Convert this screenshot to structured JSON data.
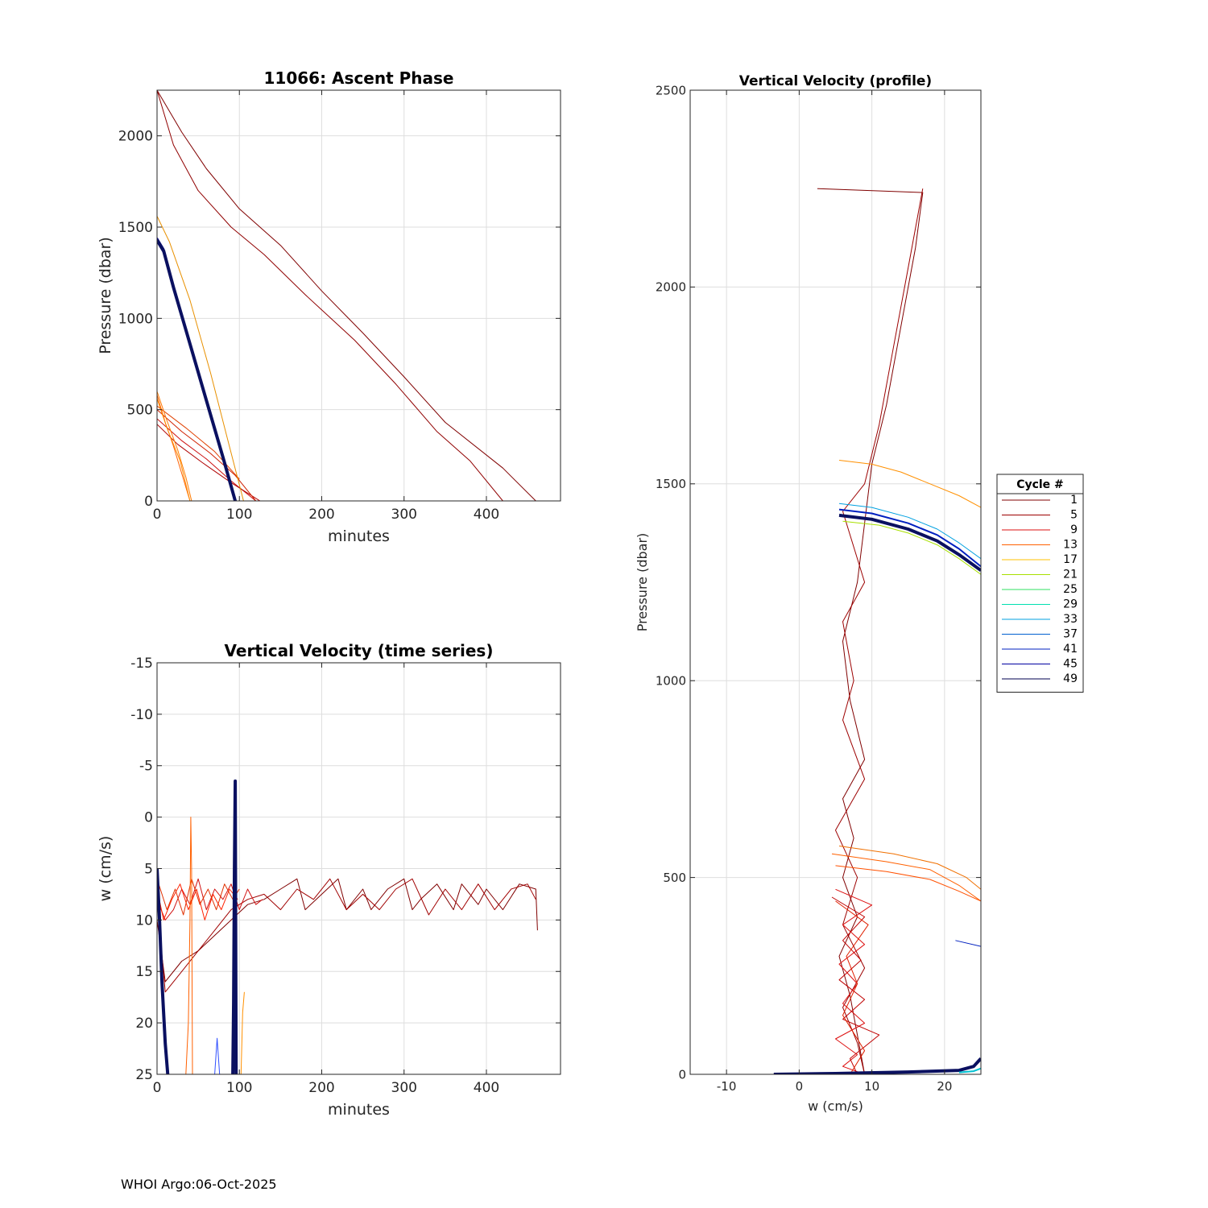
{
  "footer": "WHOI Argo:06-Oct-2025",
  "chart_data": [
    {
      "id": "ascent",
      "type": "line",
      "title": "11066: Ascent Phase",
      "xlabel": "minutes",
      "ylabel": "Pressure (dbar)",
      "xlim": [
        0,
        490
      ],
      "ylim": [
        2250,
        0
      ],
      "y_reversed": true,
      "xticks": [
        0,
        100,
        200,
        300,
        400
      ],
      "yticks": [
        0,
        500,
        1000,
        1500,
        2000
      ],
      "grid": true,
      "series": [
        {
          "color": "#800000",
          "width": 1,
          "x": [
            0,
            30,
            60,
            100,
            150,
            200,
            250,
            300,
            350,
            420,
            460
          ],
          "y": [
            2250,
            2020,
            1820,
            1600,
            1400,
            1150,
            920,
            680,
            430,
            180,
            0
          ]
        },
        {
          "color": "#900000",
          "width": 1,
          "x": [
            0,
            20,
            50,
            90,
            130,
            180,
            240,
            290,
            340,
            380,
            420
          ],
          "y": [
            2250,
            1950,
            1700,
            1500,
            1350,
            1130,
            880,
            640,
            380,
            220,
            0
          ]
        },
        {
          "color": "#cc1010",
          "width": 1,
          "x": [
            0,
            30,
            60,
            90,
            120
          ],
          "y": [
            450,
            330,
            230,
            110,
            0
          ]
        },
        {
          "color": "#b00000",
          "width": 1,
          "x": [
            0,
            25,
            55,
            90,
            125
          ],
          "y": [
            420,
            310,
            210,
            100,
            0
          ]
        },
        {
          "color": "#d02000",
          "width": 1,
          "x": [
            0,
            30,
            65,
            95,
            120
          ],
          "y": [
            500,
            380,
            260,
            140,
            0
          ]
        },
        {
          "color": "#e04000",
          "width": 1,
          "x": [
            0,
            35,
            70,
            100
          ],
          "y": [
            520,
            400,
            270,
            120
          ]
        },
        {
          "color": "#ff6000",
          "width": 1,
          "x": [
            0,
            10,
            20,
            30,
            40
          ],
          "y": [
            580,
            430,
            300,
            150,
            0
          ]
        },
        {
          "color": "#ff7a00",
          "width": 1,
          "x": [
            0,
            12,
            25,
            35,
            42
          ],
          "y": [
            600,
            440,
            280,
            130,
            0
          ]
        },
        {
          "color": "#ff8c00",
          "width": 1,
          "x": [
            0,
            12,
            28,
            40
          ],
          "y": [
            560,
            400,
            220,
            0
          ]
        },
        {
          "color": "#e89000",
          "width": 1,
          "x": [
            0,
            15,
            40,
            65,
            85,
            105
          ],
          "y": [
            1560,
            1420,
            1100,
            700,
            350,
            0
          ]
        },
        {
          "color": "#0000a0",
          "width": 2,
          "x": [
            0,
            8,
            20,
            40,
            60,
            80,
            95
          ],
          "y": [
            1440,
            1380,
            1180,
            870,
            560,
            250,
            0
          ]
        },
        {
          "color": "#00006a",
          "width": 2,
          "x": [
            0,
            8,
            20,
            40,
            60,
            80,
            95
          ],
          "y": [
            1420,
            1360,
            1160,
            850,
            540,
            230,
            0
          ]
        },
        {
          "color": "#0a1060",
          "width": 4,
          "x": [
            0,
            8,
            20,
            40,
            60,
            80,
            95
          ],
          "y": [
            1430,
            1370,
            1170,
            860,
            550,
            240,
            0
          ]
        }
      ]
    },
    {
      "id": "timeseries",
      "type": "line",
      "title": "Vertical Velocity (time series)",
      "xlabel": "minutes",
      "ylabel": "w (cm/s)",
      "xlim": [
        0,
        490
      ],
      "ylim": [
        -15,
        25
      ],
      "xticks": [
        0,
        100,
        200,
        300,
        400
      ],
      "yticks": [
        -15,
        -10,
        -5,
        0,
        5,
        10,
        15,
        20,
        25
      ],
      "grid": true,
      "series": [
        {
          "color": "#800000",
          "width": 1,
          "x": [
            0,
            10,
            30,
            50,
            70,
            90,
            110,
            130,
            150,
            170,
            180,
            200,
            220,
            230,
            250,
            260,
            280,
            300,
            310,
            320,
            340,
            360,
            370,
            390,
            400,
            420,
            440,
            460,
            462
          ],
          "y": [
            10,
            16,
            14,
            13,
            11.5,
            10,
            8.5,
            8,
            7,
            6,
            9,
            7.5,
            6,
            9,
            7,
            9,
            7,
            6,
            9,
            8,
            6.5,
            9,
            6.5,
            8.5,
            7,
            9,
            6.5,
            7,
            11
          ]
        },
        {
          "color": "#a00000",
          "width": 1,
          "x": [
            0,
            10,
            30,
            50,
            70,
            90,
            110,
            130,
            150,
            170,
            190,
            210,
            230,
            250,
            270,
            290,
            310,
            330,
            350,
            370,
            390,
            410,
            430,
            450,
            460
          ],
          "y": [
            8,
            17,
            15,
            13,
            11,
            9,
            8,
            7.5,
            9,
            7,
            8,
            6,
            9,
            7.5,
            9,
            7,
            6,
            9.5,
            7,
            9,
            6.5,
            9,
            7,
            6.5,
            8
          ]
        },
        {
          "color": "#d01010",
          "width": 1,
          "x": [
            0,
            10,
            20,
            30,
            40,
            50,
            60,
            70,
            80,
            90,
            100,
            110,
            120,
            128
          ],
          "y": [
            8,
            10,
            9,
            7,
            8.5,
            6,
            9,
            7,
            8,
            6.5,
            9,
            7,
            8.5,
            8
          ]
        },
        {
          "color": "#ff2000",
          "width": 1,
          "x": [
            0,
            8,
            18,
            28,
            38,
            48,
            58,
            68,
            78,
            88,
            98
          ],
          "y": [
            7,
            10,
            8,
            6.5,
            9,
            7,
            10,
            7.5,
            9,
            7,
            8
          ]
        },
        {
          "color": "#e03000",
          "width": 1,
          "x": [
            0,
            12,
            22,
            32,
            42,
            52,
            62,
            72,
            82,
            92,
            100
          ],
          "y": [
            6,
            9,
            7,
            9.5,
            6,
            8.5,
            7,
            9,
            6.5,
            8,
            7
          ]
        },
        {
          "color": "#ff6000",
          "width": 1,
          "x": [
            35,
            38,
            40,
            41,
            42,
            43
          ],
          "y": [
            25,
            20,
            10,
            0,
            5,
            25
          ]
        },
        {
          "color": "#ff9000",
          "width": 1,
          "x": [
            102,
            104,
            106
          ],
          "y": [
            25,
            19,
            17
          ]
        },
        {
          "color": "#3050ff",
          "width": 1,
          "x": [
            70,
            73,
            76
          ],
          "y": [
            25,
            21.5,
            25
          ]
        },
        {
          "color": "#0a1060",
          "width": 4,
          "x": [
            0,
            3,
            6,
            10,
            13
          ],
          "y": [
            5,
            10,
            16,
            22,
            25
          ]
        },
        {
          "color": "#0a1060",
          "width": 4,
          "x": [
            92,
            93,
            94,
            95,
            96
          ],
          "y": [
            25,
            18,
            5,
            -3.5,
            25
          ]
        }
      ]
    },
    {
      "id": "profile",
      "type": "line",
      "title": "Vertical Velocity (profile)",
      "xlabel": "w (cm/s)",
      "ylabel": "Pressure (dbar)",
      "xlim": [
        -15,
        25
      ],
      "ylim": [
        2500,
        0
      ],
      "y_reversed": true,
      "xticks": [
        -10,
        0,
        10,
        20
      ],
      "yticks": [
        0,
        500,
        1000,
        1500,
        2000,
        2500
      ],
      "grid": true,
      "legend": {
        "title": "Cycle #",
        "placement": "outside-right",
        "entries": [
          {
            "label": "1",
            "color": "#800000"
          },
          {
            "label": "5",
            "color": "#9c0000"
          },
          {
            "label": "9",
            "color": "#dd1010"
          },
          {
            "label": "13",
            "color": "#ff6000"
          },
          {
            "label": "17",
            "color": "#ffc000"
          },
          {
            "label": "21",
            "color": "#a8e000"
          },
          {
            "label": "25",
            "color": "#30e060"
          },
          {
            "label": "29",
            "color": "#00e0b0"
          },
          {
            "label": "33",
            "color": "#00a0e0"
          },
          {
            "label": "37",
            "color": "#0060d0"
          },
          {
            "label": "41",
            "color": "#0020c0"
          },
          {
            "label": "45",
            "color": "#0000a0"
          },
          {
            "label": "49",
            "color": "#000050"
          }
        ]
      },
      "series": [
        {
          "color": "#800000",
          "width": 1,
          "x": [
            2.5,
            17,
            16,
            14,
            12,
            10,
            9,
            8,
            6,
            7,
            9,
            6,
            7.5,
            6,
            8,
            5.5,
            7,
            8,
            9
          ],
          "y": [
            2250,
            2240,
            2100,
            1900,
            1700,
            1550,
            1400,
            1250,
            1100,
            950,
            800,
            700,
            600,
            500,
            400,
            300,
            200,
            100,
            0
          ]
        },
        {
          "color": "#9c0000",
          "width": 1,
          "x": [
            17,
            15,
            13,
            11,
            9,
            6,
            9,
            6,
            7.5,
            6,
            9,
            5,
            8,
            6,
            9,
            6,
            8,
            9
          ],
          "y": [
            2250,
            2050,
            1850,
            1650,
            1500,
            1430,
            1250,
            1150,
            1000,
            900,
            750,
            620,
            500,
            380,
            270,
            170,
            80,
            0
          ]
        },
        {
          "color": "#dd1010",
          "width": 1,
          "x": [
            5,
            10,
            6,
            9,
            5.5,
            8,
            6,
            9,
            5,
            8,
            6,
            9
          ],
          "y": [
            470,
            430,
            380,
            330,
            280,
            230,
            180,
            130,
            90,
            50,
            20,
            0
          ]
        },
        {
          "color": "#c00000",
          "width": 1,
          "x": [
            4.5,
            9,
            6,
            8.5,
            5.5,
            9,
            6,
            11,
            7,
            8
          ],
          "y": [
            450,
            400,
            340,
            290,
            240,
            190,
            140,
            100,
            40,
            0
          ]
        },
        {
          "color": "#e02000",
          "width": 1,
          "x": [
            5,
            9.5,
            6.5,
            8,
            6,
            9,
            7
          ],
          "y": [
            440,
            380,
            300,
            230,
            150,
            60,
            0
          ]
        },
        {
          "color": "#ff6000",
          "width": 1,
          "x": [
            4.5,
            12,
            18,
            22,
            25
          ],
          "y": [
            560,
            540,
            520,
            480,
            440
          ]
        },
        {
          "color": "#f07000",
          "width": 1,
          "x": [
            5.5,
            13,
            19,
            23,
            25
          ],
          "y": [
            580,
            560,
            535,
            500,
            470
          ]
        },
        {
          "color": "#ff5000",
          "width": 1,
          "x": [
            5,
            12,
            18,
            22,
            25
          ],
          "y": [
            530,
            515,
            495,
            465,
            440
          ]
        },
        {
          "color": "#ff9000",
          "width": 1,
          "x": [
            5.5,
            10,
            14,
            18,
            22,
            25
          ],
          "y": [
            1560,
            1550,
            1530,
            1500,
            1470,
            1440
          ]
        },
        {
          "color": "#a8e000",
          "width": 1,
          "x": [
            6,
            11,
            15,
            19,
            22,
            25
          ],
          "y": [
            1405,
            1395,
            1375,
            1345,
            1310,
            1270
          ]
        },
        {
          "color": "#00a0e0",
          "width": 1,
          "x": [
            5.5,
            10,
            15,
            19,
            22,
            25
          ],
          "y": [
            1450,
            1440,
            1415,
            1385,
            1350,
            1310
          ]
        },
        {
          "color": "#0020c0",
          "width": 2,
          "x": [
            5.5,
            10,
            15,
            19,
            22,
            25
          ],
          "y": [
            1435,
            1425,
            1400,
            1370,
            1335,
            1290
          ]
        },
        {
          "color": "#0a1060",
          "width": 4,
          "x": [
            5.5,
            10,
            15,
            19,
            22,
            25
          ],
          "y": [
            1420,
            1410,
            1385,
            1355,
            1320,
            1280
          ]
        },
        {
          "color": "#0020c0",
          "width": 1,
          "x": [
            21.5,
            25,
            25
          ],
          "y": [
            340,
            325,
            360
          ]
        },
        {
          "color": "#0a1060",
          "width": 4,
          "x": [
            -3.5,
            5,
            15,
            22,
            24,
            25
          ],
          "y": [
            0,
            2,
            6,
            10,
            20,
            40
          ]
        },
        {
          "color": "#00c0d0",
          "width": 2,
          "x": [
            22,
            24,
            25
          ],
          "y": [
            5,
            8,
            15
          ]
        }
      ]
    }
  ]
}
